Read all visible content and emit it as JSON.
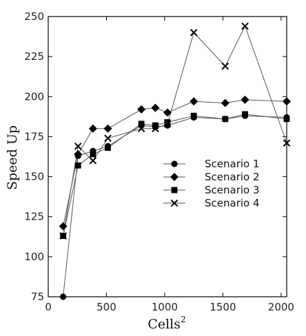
{
  "chart_data": {
    "type": "line",
    "xlabel": "Cells",
    "xlabel_superscript": "2",
    "ylabel": "Speed Up",
    "xlim": [
      0,
      2048
    ],
    "ylim": [
      75,
      250
    ],
    "xticks": [
      0,
      500,
      1000,
      1500,
      2000
    ],
    "yticks": [
      75,
      100,
      125,
      150,
      175,
      200,
      225,
      250
    ],
    "grid": false,
    "legend_position": "center-right",
    "line_color": "#555555",
    "marker_color": "#000000",
    "x": [
      128,
      256,
      384,
      512,
      800,
      920,
      1024,
      1250,
      1520,
      1690,
      2048
    ],
    "series": [
      {
        "name": "Scenario 1",
        "marker": "circle",
        "values": [
          75,
          163,
          166,
          169,
          182,
          181,
          182,
          187,
          186,
          188,
          187
        ]
      },
      {
        "name": "Scenario 2",
        "marker": "diamond",
        "values": [
          119,
          164,
          180,
          180,
          192,
          193,
          190,
          197,
          196,
          198,
          197
        ]
      },
      {
        "name": "Scenario 3",
        "marker": "square",
        "values": [
          113,
          157,
          164,
          168,
          183,
          182,
          184,
          188,
          186,
          189,
          186
        ]
      },
      {
        "name": "Scenario 4",
        "marker": "x",
        "values": [
          113,
          169,
          160,
          174,
          180,
          180,
          183,
          240,
          219,
          244,
          171
        ]
      }
    ]
  }
}
